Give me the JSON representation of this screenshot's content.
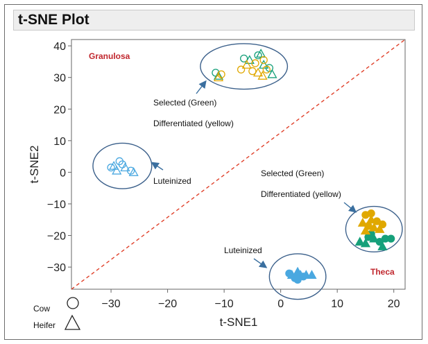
{
  "chart_data": {
    "type": "scatter",
    "title": "t-SNE Plot",
    "xlabel": "t-SNE1",
    "ylabel": "t-SNE2",
    "xlim": [
      -37,
      22
    ],
    "ylim": [
      -37,
      42
    ],
    "xticks": [
      -30,
      -20,
      -10,
      0,
      10,
      20
    ],
    "yticks": [
      40,
      30,
      20,
      10,
      0,
      -10,
      -20,
      -30
    ],
    "grid": false,
    "reference_line": {
      "style": "dashed",
      "color": "#e0402a",
      "from": [
        -37,
        -37
      ],
      "to": [
        22,
        42
      ]
    },
    "colors": {
      "selected_green": "#16a07a",
      "differentiated_yellow": "#e0a800",
      "luteinized_blue": "#4aa8e0",
      "ellipse": "#3a5f8a",
      "arrow": "#3a6f9f"
    },
    "series": [
      {
        "name": "Granulosa – Selected (Green)",
        "fill": "open",
        "color": "#16a07a",
        "points": [
          {
            "x": -11.5,
            "y": 31.5,
            "m": "circle"
          },
          {
            "x": -11,
            "y": 30.5,
            "m": "triangle"
          },
          {
            "x": -6.5,
            "y": 36,
            "m": "circle"
          },
          {
            "x": -5.5,
            "y": 35.5,
            "m": "triangle"
          },
          {
            "x": -4,
            "y": 37,
            "m": "circle"
          },
          {
            "x": -3.5,
            "y": 37.5,
            "m": "triangle"
          },
          {
            "x": -3,
            "y": 34,
            "m": "triangle"
          },
          {
            "x": -2,
            "y": 33,
            "m": "circle"
          },
          {
            "x": -1.5,
            "y": 31,
            "m": "triangle"
          }
        ]
      },
      {
        "name": "Granulosa – Differentiated (yellow)",
        "fill": "open",
        "color": "#e0a800",
        "points": [
          {
            "x": -11,
            "y": 30,
            "m": "triangle"
          },
          {
            "x": -10.5,
            "y": 31,
            "m": "circle"
          },
          {
            "x": -7,
            "y": 32.5,
            "m": "circle"
          },
          {
            "x": -6,
            "y": 34,
            "m": "triangle"
          },
          {
            "x": -5,
            "y": 32,
            "m": "circle"
          },
          {
            "x": -4.5,
            "y": 34.5,
            "m": "circle"
          },
          {
            "x": -4,
            "y": 31.5,
            "m": "triangle"
          },
          {
            "x": -3,
            "y": 35.5,
            "m": "circle"
          },
          {
            "x": -2.5,
            "y": 32.5,
            "m": "circle"
          },
          {
            "x": -3.2,
            "y": 30.5,
            "m": "triangle"
          }
        ]
      },
      {
        "name": "Granulosa – Luteinized",
        "fill": "open",
        "color": "#4aa8e0",
        "points": [
          {
            "x": -30,
            "y": 1.5,
            "m": "circle"
          },
          {
            "x": -29.5,
            "y": 2,
            "m": "triangle"
          },
          {
            "x": -29,
            "y": 0.5,
            "m": "triangle"
          },
          {
            "x": -28.5,
            "y": 3.5,
            "m": "circle"
          },
          {
            "x": -28,
            "y": 2.5,
            "m": "circle"
          },
          {
            "x": -27.5,
            "y": 1.5,
            "m": "triangle"
          },
          {
            "x": -26.5,
            "y": 0.5,
            "m": "circle"
          },
          {
            "x": -26,
            "y": 0,
            "m": "triangle"
          }
        ]
      },
      {
        "name": "Theca – Selected (Green)",
        "fill": "filled",
        "color": "#16a07a",
        "points": [
          {
            "x": 14,
            "y": -22,
            "m": "triangle"
          },
          {
            "x": 15,
            "y": -22.5,
            "m": "triangle"
          },
          {
            "x": 15.5,
            "y": -20.5,
            "m": "circle"
          },
          {
            "x": 16.5,
            "y": -21,
            "m": "triangle"
          },
          {
            "x": 17.5,
            "y": -22,
            "m": "circle"
          },
          {
            "x": 18,
            "y": -23.5,
            "m": "triangle"
          },
          {
            "x": 18.5,
            "y": -21,
            "m": "circle"
          },
          {
            "x": 19.5,
            "y": -21,
            "m": "circle"
          },
          {
            "x": 16,
            "y": -19.5,
            "m": "circle"
          }
        ]
      },
      {
        "name": "Theca – Differentiated (yellow)",
        "fill": "filled",
        "color": "#e0a800",
        "points": [
          {
            "x": 15,
            "y": -13.5,
            "m": "circle"
          },
          {
            "x": 14.5,
            "y": -16,
            "m": "triangle"
          },
          {
            "x": 15.5,
            "y": -17,
            "m": "circle"
          },
          {
            "x": 16,
            "y": -15,
            "m": "triangle"
          },
          {
            "x": 16.5,
            "y": -17.5,
            "m": "triangle"
          },
          {
            "x": 17,
            "y": -15.5,
            "m": "circle"
          },
          {
            "x": 17.5,
            "y": -18,
            "m": "triangle"
          },
          {
            "x": 18,
            "y": -16.5,
            "m": "circle"
          },
          {
            "x": 16,
            "y": -13,
            "m": "circle"
          },
          {
            "x": 15,
            "y": -18.5,
            "m": "triangle"
          }
        ]
      },
      {
        "name": "Theca – Luteinized",
        "fill": "filled",
        "color": "#4aa8e0",
        "points": [
          {
            "x": 1.5,
            "y": -32,
            "m": "circle"
          },
          {
            "x": 2,
            "y": -32.5,
            "m": "triangle"
          },
          {
            "x": 2.5,
            "y": -33.5,
            "m": "circle"
          },
          {
            "x": 3,
            "y": -31.5,
            "m": "triangle"
          },
          {
            "x": 3.5,
            "y": -32.5,
            "m": "triangle"
          },
          {
            "x": 3,
            "y": -34,
            "m": "circle"
          },
          {
            "x": 4,
            "y": -33,
            "m": "circle"
          },
          {
            "x": 4.5,
            "y": -32.5,
            "m": "triangle"
          },
          {
            "x": 5.5,
            "y": -32.5,
            "m": "triangle"
          }
        ]
      }
    ],
    "ellipses": [
      {
        "name": "granulosa-selected-differentiated",
        "cx": -6.5,
        "cy": 33.5,
        "rx": 7.7,
        "ry": 7.2
      },
      {
        "name": "granulosa-luteinized",
        "cx": -28,
        "cy": 2,
        "rx": 5.2,
        "ry": 7.2
      },
      {
        "name": "theca-selected-differentiated",
        "cx": 16.5,
        "cy": -18,
        "rx": 5,
        "ry": 7.2
      },
      {
        "name": "theca-luteinized",
        "cx": 3,
        "cy": -33,
        "rx": 5,
        "ry": 7.2
      }
    ],
    "annotations": {
      "region_granulosa": "Granulosa",
      "region_theca": "Theca",
      "granulosa_selected": "Selected (Green)",
      "granulosa_differentiated": "Differentiated (yellow)",
      "granulosa_luteinized": "Luteinized",
      "theca_selected": "Selected (Green)",
      "theca_differentiated": "Differentiated (yellow)",
      "theca_luteinized": "Luteinized"
    },
    "legend": {
      "placement": "bottom-left",
      "items": [
        {
          "label": "Cow",
          "marker": "circle"
        },
        {
          "label": "Heifer",
          "marker": "triangle"
        }
      ]
    }
  }
}
